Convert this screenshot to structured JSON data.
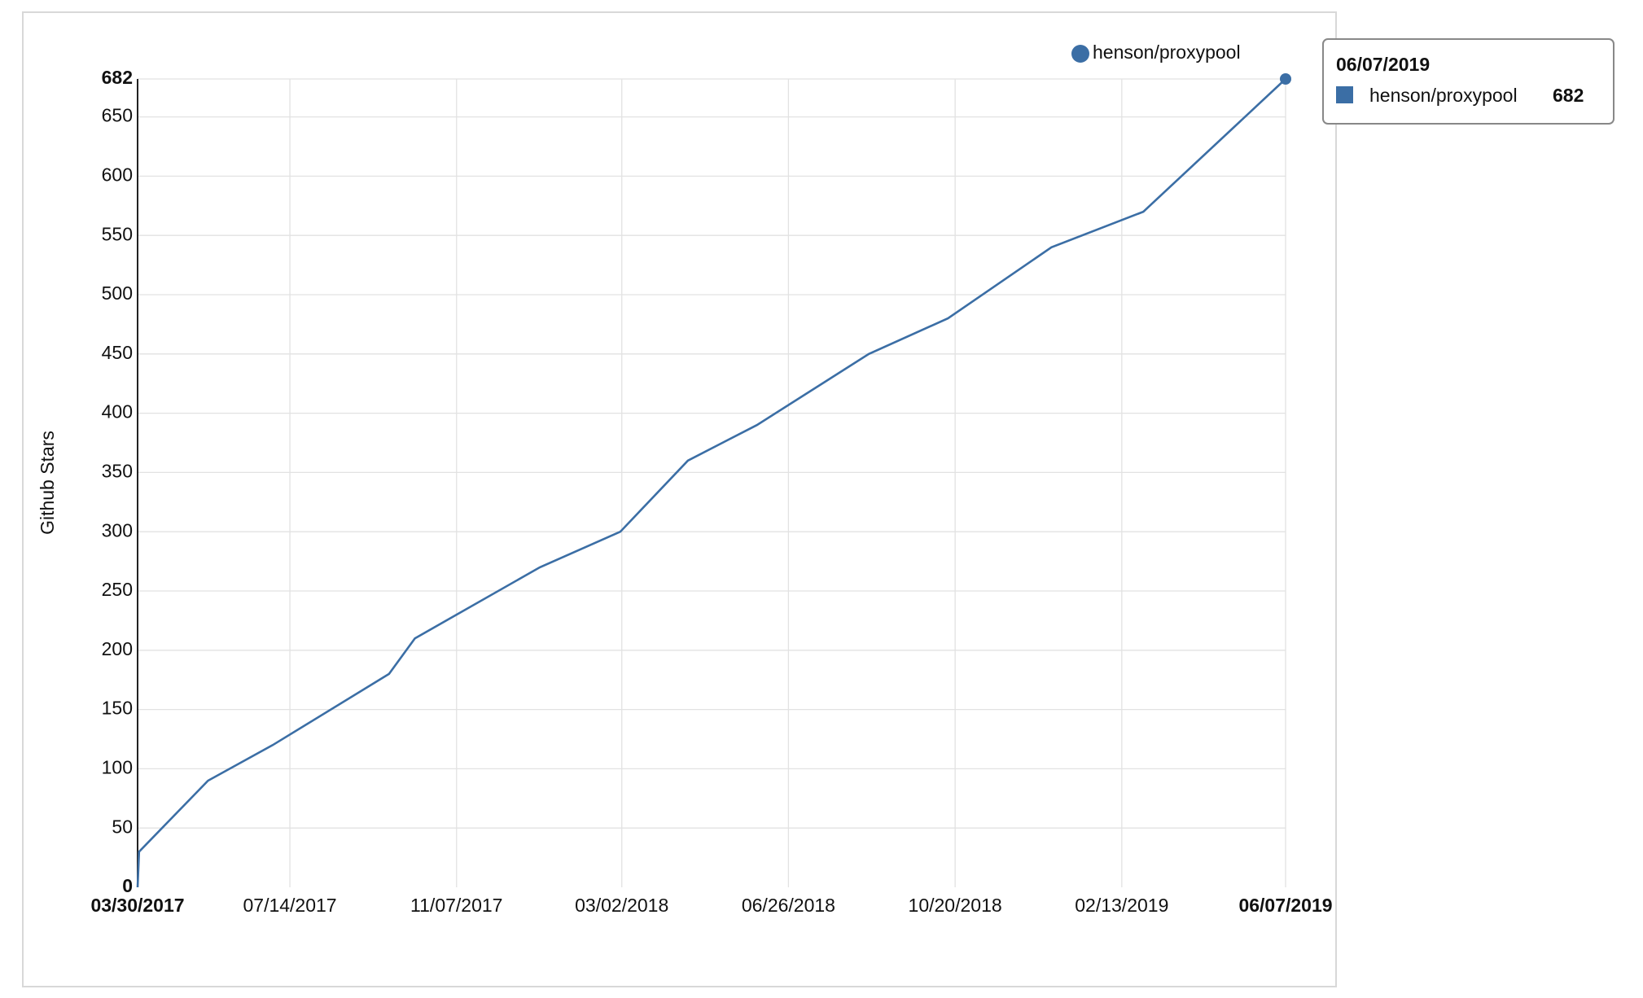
{
  "chart_data": {
    "type": "line",
    "y_label": "Github Stars",
    "x": [
      "03/30/2017",
      "03/31/2017",
      "05/18/2017",
      "07/02/2017",
      "09/21/2017",
      "10/09/2017",
      "01/04/2018",
      "03/01/2018",
      "04/17/2018",
      "06/04/2018",
      "08/21/2018",
      "10/15/2018",
      "12/26/2018",
      "02/28/2019",
      "06/07/2019"
    ],
    "series": [
      {
        "name": "henson/proxypool",
        "color": "#3b6ea5",
        "values": [
          0,
          30,
          90,
          120,
          180,
          210,
          270,
          300,
          360,
          390,
          450,
          480,
          540,
          570,
          682
        ]
      }
    ],
    "xlim": [
      "03/30/2017",
      "06/07/2019"
    ],
    "xticks": [
      "03/30/2017",
      "07/14/2017",
      "11/07/2017",
      "03/02/2018",
      "06/26/2018",
      "10/20/2018",
      "02/13/2019",
      "06/07/2019"
    ],
    "ylim": [
      0,
      682
    ],
    "yticks": [
      0,
      50,
      100,
      150,
      200,
      250,
      300,
      350,
      400,
      450,
      500,
      550,
      600,
      650,
      682
    ],
    "grid": true
  }
}
